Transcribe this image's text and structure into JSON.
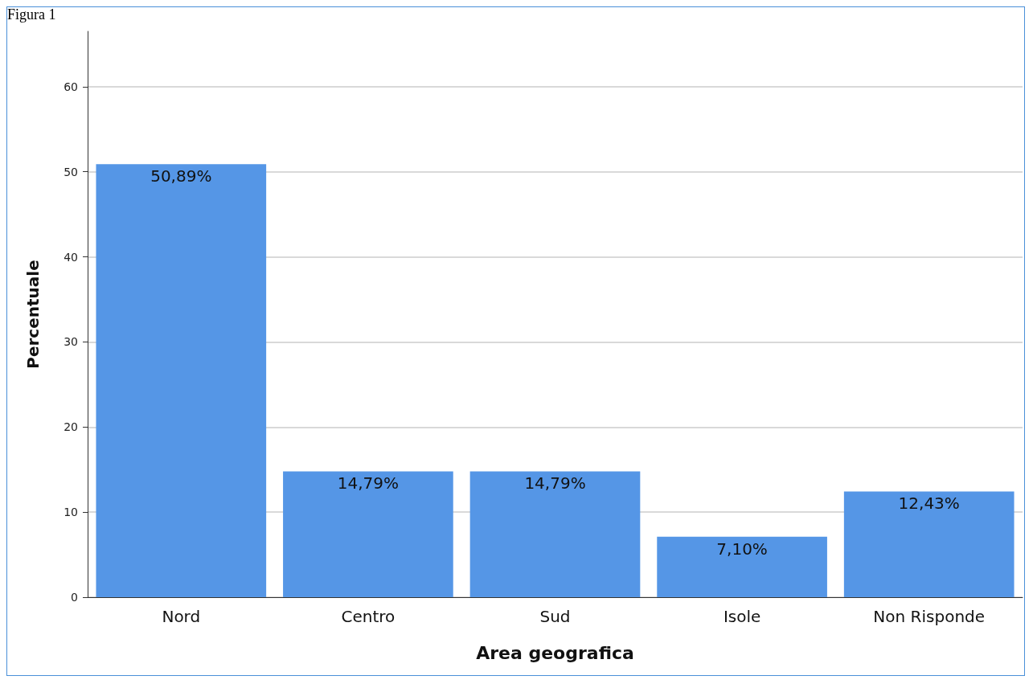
{
  "chart_data": {
    "type": "bar",
    "annotations": [
      "Figura 1"
    ],
    "xlabel": "Area geografica",
    "ylabel": "Percentuale",
    "categories": [
      "Nord",
      "Centro",
      "Sud",
      "Isole",
      "Non Risponde"
    ],
    "values": [
      50.89,
      14.79,
      14.79,
      7.1,
      12.43
    ],
    "value_labels": [
      "50,89%",
      "14,79%",
      "14,79%",
      "7,10%",
      "12,43%"
    ],
    "color": "#5596e6",
    "ylim": [
      0,
      66.5
    ],
    "yticks": [
      0,
      10,
      20,
      30,
      40,
      50,
      60
    ],
    "grid": "y"
  }
}
